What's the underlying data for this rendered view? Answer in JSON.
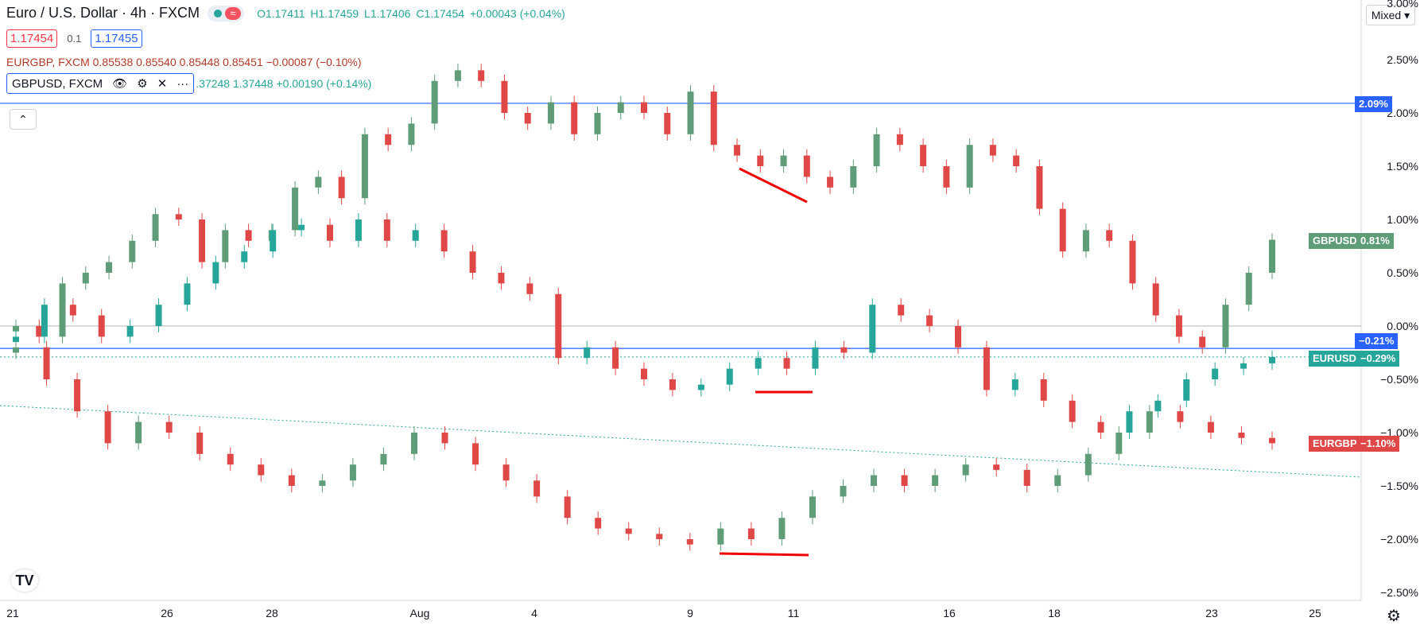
{
  "legend": {
    "title": "Euro / U.S. Dollar · 4h · FXCM",
    "ohlc": {
      "o": "O1.17411",
      "h": "H1.17459",
      "l": "L1.17406",
      "c": "C1.17454",
      "chg": "+0.00043 (+0.04%)"
    },
    "sell_price": "1.17454",
    "spread": "0.1",
    "buy_price": "1.17455",
    "compare_eurgbp": "EURGBP, FXCM  0.85538  0.85540  0.85448  0.85451  −0.00087 (−0.10%)",
    "compare_gbpusd_label": "GBPUSD, FXCM",
    "compare_gbpusd_values": ".37248  1.37448  +0.00190 (+0.14%)"
  },
  "toolbar": {
    "scale_mode": "Mixed"
  },
  "y_axis_labels": [
    "2.50%",
    "2.00%",
    "1.50%",
    "1.00%",
    "0.50%",
    "0.00%",
    "−0.50%",
    "−1.00%",
    "−1.50%",
    "−2.00%",
    "−2.50%"
  ],
  "y_axis_top_partial": "3.00%",
  "x_axis_labels": [
    "21",
    "26",
    "28",
    "Aug",
    "4",
    "9",
    "11",
    "16",
    "18",
    "23",
    "25"
  ],
  "tags": {
    "blue_line": "2.09%",
    "gbpusd_name": "GBPUSD",
    "gbpusd_value": "0.81%",
    "blue_line2": "−0.21%",
    "eurusd_name": "EURUSD",
    "eurusd_value": "−0.29%",
    "eurgbp_name": "EURGBP",
    "eurgbp_value": "−1.10%"
  },
  "colors": {
    "up": "#5f9c78",
    "down": "#e04848",
    "eurusd_up": "#26a69a",
    "blue": "#2962ff",
    "annot": "#f00000"
  },
  "chart_data": {
    "type": "candlestick",
    "unit": "percent change",
    "ylim": [
      -2.6,
      3.0
    ],
    "horizontal_lines": [
      2.09,
      -0.21
    ],
    "series": [
      {
        "name": "GBPUSD",
        "last": 0.81,
        "closes": [
          0.0,
          -0.1,
          0.4,
          0.5,
          0.6,
          0.8,
          1.05,
          1.0,
          0.6,
          0.9,
          0.8,
          0.9,
          1.3,
          1.4,
          1.2,
          1.8,
          1.7,
          1.9,
          2.3,
          2.4,
          2.3,
          2.0,
          1.9,
          2.1,
          1.8,
          2.0,
          2.1,
          2.0,
          1.8,
          2.2,
          1.7,
          1.6,
          1.5,
          1.6,
          1.4,
          1.3,
          1.5,
          1.8,
          1.7,
          1.5,
          1.3,
          1.7,
          1.6,
          1.5,
          1.1,
          0.7,
          0.9,
          0.8,
          0.4,
          0.1,
          -0.1,
          -0.2,
          0.2,
          0.5,
          0.81
        ]
      },
      {
        "name": "EURUSD",
        "last": -0.29,
        "closes": [
          -0.1,
          0.2,
          0.1,
          -0.1,
          0.0,
          0.2,
          0.4,
          0.6,
          0.7,
          0.9,
          0.95,
          0.8,
          1.0,
          0.8,
          0.9,
          0.7,
          0.5,
          0.4,
          0.3,
          -0.3,
          -0.2,
          -0.4,
          -0.5,
          -0.6,
          -0.55,
          -0.4,
          -0.3,
          -0.4,
          -0.2,
          -0.25,
          0.2,
          0.1,
          0.0,
          -0.2,
          -0.6,
          -0.5,
          -0.7,
          -0.9,
          -1.0,
          -0.8,
          -0.7,
          -0.5,
          -0.4,
          -0.35,
          -0.29
        ]
      },
      {
        "name": "EURGBP",
        "last": -1.1,
        "closes": [
          -0.2,
          -0.5,
          -0.8,
          -1.1,
          -0.9,
          -1.0,
          -1.2,
          -1.3,
          -1.4,
          -1.5,
          -1.45,
          -1.3,
          -1.2,
          -1.0,
          -1.1,
          -1.3,
          -1.45,
          -1.6,
          -1.8,
          -1.9,
          -1.95,
          -2.0,
          -2.05,
          -1.9,
          -2.0,
          -1.8,
          -1.6,
          -1.5,
          -1.4,
          -1.5,
          -1.4,
          -1.3,
          -1.35,
          -1.5,
          -1.4,
          -1.2,
          -1.0,
          -0.8,
          -0.9,
          -1.0,
          -1.05,
          -1.1
        ]
      }
    ]
  }
}
